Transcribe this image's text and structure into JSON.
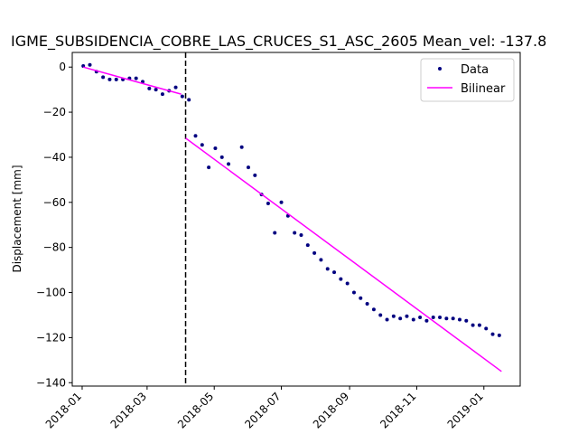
{
  "chart_data": {
    "type": "scatter",
    "title": "IGME_SUBSIDENCIA_COBRE_LAS_CRUCES_S1_ASC_2605     Mean_vel: -137.8",
    "xlabel": "",
    "ylabel": "Displacement [mm]",
    "xlim": [
      "2017-12-23",
      "2019-02-03"
    ],
    "ylim": [
      -141.5,
      6.5
    ],
    "x_ticks": [
      "2018-01",
      "2018-03",
      "2018-05",
      "2018-07",
      "2018-09",
      "2018-11",
      "2019-01"
    ],
    "y_ticks": [
      0,
      -20,
      -40,
      -60,
      -80,
      -100,
      -120,
      -140
    ],
    "grid": false,
    "legend_position": "top-right",
    "breakpoint": "2018-04-05",
    "colors": {
      "data": "#000080",
      "fit": "#ff00ff",
      "breakpoint": "#000000"
    },
    "series": [
      {
        "name": "Data",
        "style": "points",
        "points": [
          [
            "2018-01-02",
            0.5
          ],
          [
            "2018-01-08",
            1.0
          ],
          [
            "2018-01-14",
            -2.0
          ],
          [
            "2018-01-20",
            -4.5
          ],
          [
            "2018-01-26",
            -5.5
          ],
          [
            "2018-02-01",
            -5.5
          ],
          [
            "2018-02-07",
            -5.5
          ],
          [
            "2018-02-13",
            -5.0
          ],
          [
            "2018-02-19",
            -5.0
          ],
          [
            "2018-02-25",
            -6.5
          ],
          [
            "2018-03-03",
            -9.5
          ],
          [
            "2018-03-09",
            -10.0
          ],
          [
            "2018-03-15",
            -12.0
          ],
          [
            "2018-03-21",
            -10.5
          ],
          [
            "2018-03-27",
            -9.0
          ],
          [
            "2018-04-02",
            -13.0
          ],
          [
            "2018-04-08",
            -14.5
          ],
          [
            "2018-04-14",
            -30.5
          ],
          [
            "2018-04-20",
            -34.5
          ],
          [
            "2018-04-26",
            -44.5
          ],
          [
            "2018-05-02",
            -36.0
          ],
          [
            "2018-05-08",
            -40.0
          ],
          [
            "2018-05-14",
            -43.0
          ],
          [
            "2018-05-26",
            -35.5
          ],
          [
            "2018-06-01",
            -44.5
          ],
          [
            "2018-06-07",
            -48.0
          ],
          [
            "2018-06-13",
            -56.5
          ],
          [
            "2018-06-19",
            -60.5
          ],
          [
            "2018-06-25",
            -73.5
          ],
          [
            "2018-07-01",
            -60.0
          ],
          [
            "2018-07-07",
            -66.0
          ],
          [
            "2018-07-13",
            -73.5
          ],
          [
            "2018-07-19",
            -74.5
          ],
          [
            "2018-07-25",
            -79.0
          ],
          [
            "2018-07-31",
            -82.5
          ],
          [
            "2018-08-06",
            -85.5
          ],
          [
            "2018-08-12",
            -89.5
          ],
          [
            "2018-08-18",
            -91.0
          ],
          [
            "2018-08-24",
            -94.0
          ],
          [
            "2018-08-30",
            -96.0
          ],
          [
            "2018-09-05",
            -100.0
          ],
          [
            "2018-09-11",
            -102.5
          ],
          [
            "2018-09-17",
            -105.0
          ],
          [
            "2018-09-23",
            -107.5
          ],
          [
            "2018-09-29",
            -110.0
          ],
          [
            "2018-10-05",
            -112.0
          ],
          [
            "2018-10-11",
            -110.5
          ],
          [
            "2018-10-17",
            -111.5
          ],
          [
            "2018-10-23",
            -110.5
          ],
          [
            "2018-10-29",
            -112.0
          ],
          [
            "2018-11-04",
            -111.0
          ],
          [
            "2018-11-10",
            -112.5
          ],
          [
            "2018-11-16",
            -111.0
          ],
          [
            "2018-11-22",
            -111.0
          ],
          [
            "2018-11-28",
            -111.5
          ],
          [
            "2018-12-04",
            -111.5
          ],
          [
            "2018-12-10",
            -112.0
          ],
          [
            "2018-12-16",
            -112.5
          ],
          [
            "2018-12-22",
            -114.5
          ],
          [
            "2018-12-28",
            -114.5
          ],
          [
            "2019-01-03",
            -116.0
          ],
          [
            "2019-01-09",
            -118.5
          ],
          [
            "2019-01-15",
            -119.0
          ]
        ]
      },
      {
        "name": "Bilinear",
        "style": "line",
        "segments": [
          [
            [
              "2018-01-02",
              0.0
            ],
            [
              "2018-04-01",
              -12.0
            ]
          ],
          [
            [
              "2018-04-05",
              -31.5
            ],
            [
              "2019-01-17",
              -135.0
            ]
          ]
        ]
      }
    ]
  }
}
